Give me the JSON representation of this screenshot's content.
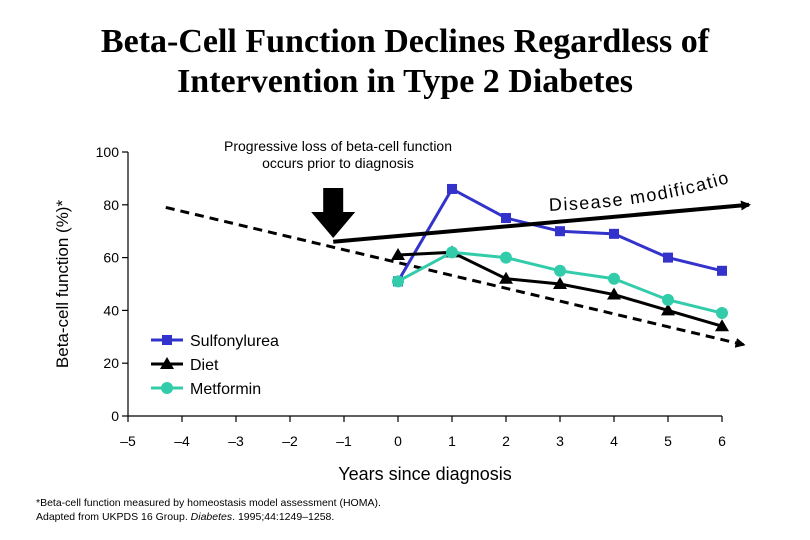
{
  "title_line1": "Beta-Cell Function Declines Regardless of",
  "title_line2": "Intervention in Type 2 Diabetes",
  "annotation_line1": "Progressive loss of beta-cell function",
  "annotation_line2": "occurs prior to diagnosis",
  "disease_label": "Disease modification",
  "footnote": {
    "line1": "*Beta-cell function measured by homeostasis model assessment (HOMA).",
    "line2_prefix": "Adapted from UKPDS 16 Group.",
    "journal": "Diabetes",
    "line2_suffix": ". 1995;44:1249–1258."
  },
  "colors": {
    "sulfonylurea": "#3333cc",
    "diet": "#000000",
    "metformin": "#33ccaa",
    "axis": "#000000"
  },
  "chart_data": {
    "type": "line",
    "title": "Beta-Cell Function Declines Regardless of Intervention in Type 2 Diabetes",
    "xlabel": "Years since diagnosis",
    "ylabel": "Beta-cell function (%)*",
    "xlim": [
      -5,
      6
    ],
    "ylim": [
      0,
      100
    ],
    "x_ticks": [
      -5,
      -4,
      -3,
      -2,
      -1,
      0,
      1,
      2,
      3,
      4,
      5,
      6
    ],
    "x_tick_labels": [
      "–5",
      "–4",
      "–3",
      "–2",
      "–1",
      "0",
      "1",
      "2",
      "3",
      "4",
      "5",
      "6"
    ],
    "y_ticks": [
      0,
      20,
      40,
      60,
      80,
      100
    ],
    "y_tick_labels": [
      "0",
      "20",
      "40",
      "60",
      "80",
      "100"
    ],
    "series": [
      {
        "name": "Sulfonylurea",
        "marker": "square",
        "color_key": "sulfonylurea",
        "x": [
          0,
          1,
          2,
          3,
          4,
          5,
          6
        ],
        "values": [
          51,
          86,
          75,
          70,
          69,
          60,
          55
        ]
      },
      {
        "name": "Diet",
        "marker": "triangle",
        "color_key": "diet",
        "x": [
          0,
          1,
          2,
          3,
          4,
          5,
          6
        ],
        "values": [
          61,
          62,
          52,
          50,
          46,
          40,
          34
        ]
      },
      {
        "name": "Metformin",
        "marker": "circle",
        "color_key": "metformin",
        "x": [
          0,
          1,
          2,
          3,
          4,
          5,
          6
        ],
        "values": [
          51,
          62,
          60,
          55,
          52,
          44,
          39
        ]
      }
    ],
    "trend_line": {
      "style": "dashed",
      "x": [
        -4.3,
        6.4
      ],
      "values": [
        79,
        27
      ]
    },
    "disease_modification_arrow": {
      "x": [
        -1.2,
        6.5
      ],
      "values": [
        66,
        80
      ]
    },
    "annotation_arrow_at_x": -1.2
  }
}
